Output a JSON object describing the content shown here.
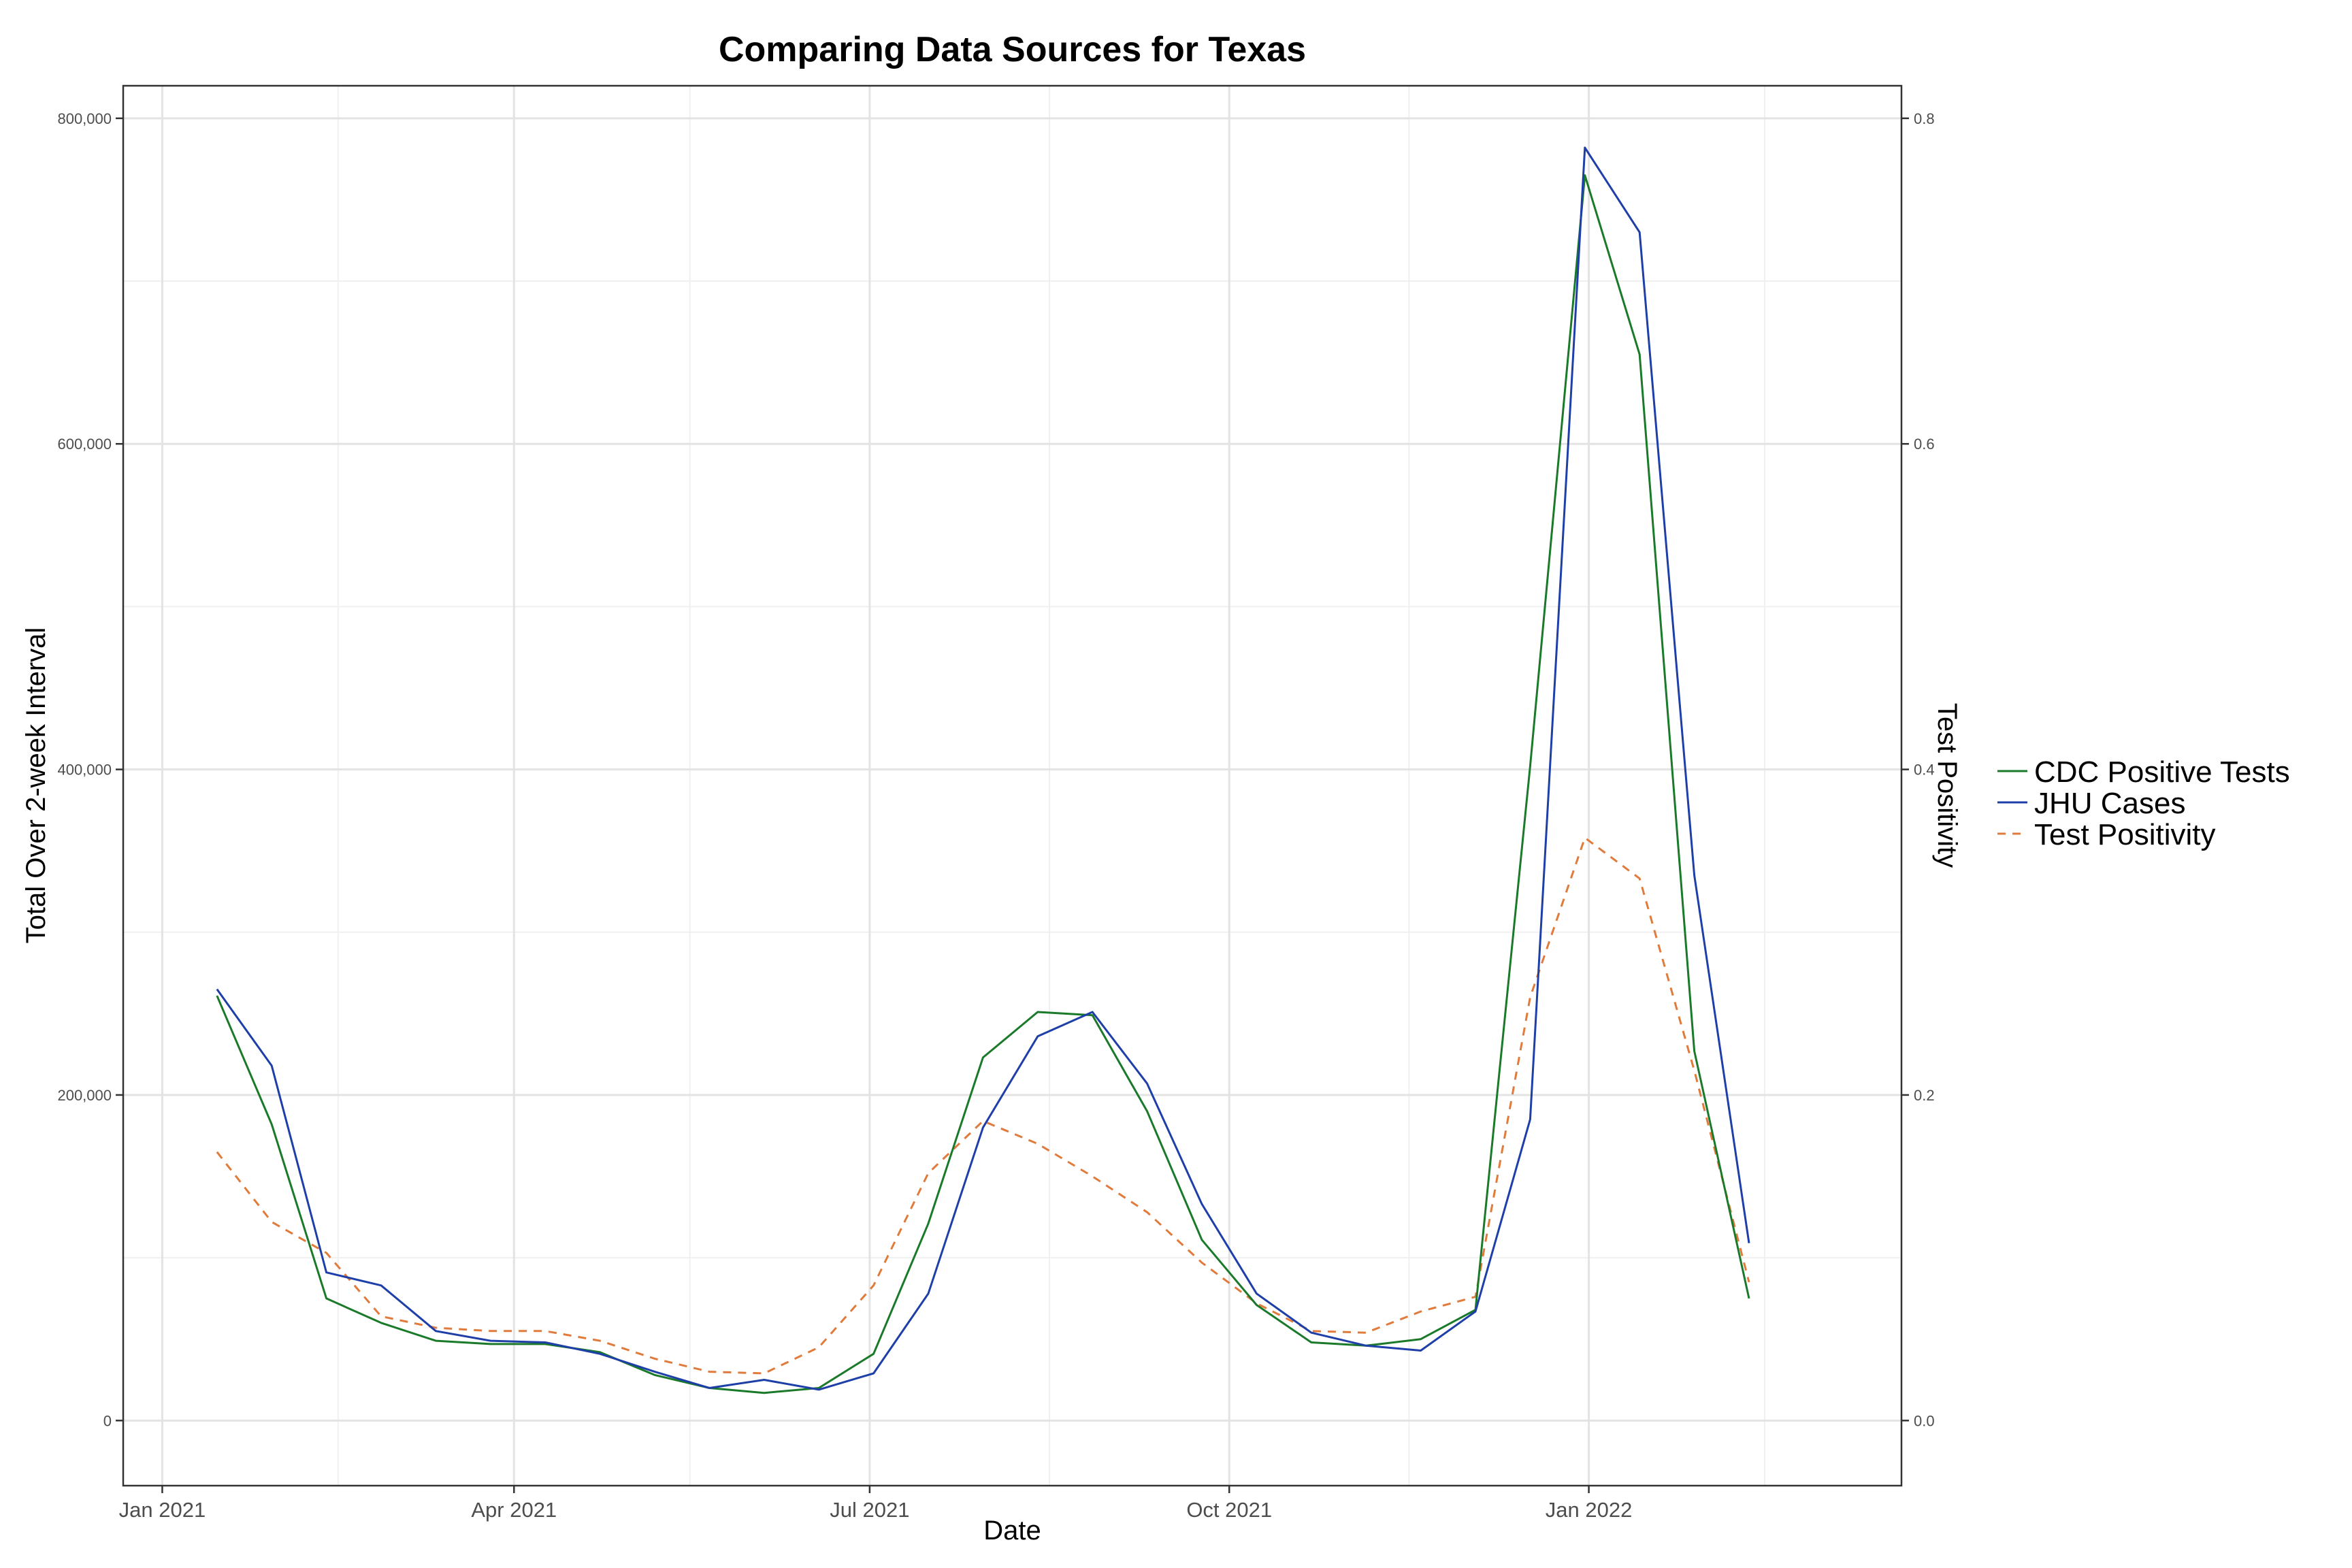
{
  "chart_data": {
    "type": "line",
    "title": "Comparing Data Sources for Texas",
    "xlabel": "Date",
    "ylabel": "Total Over 2-week Interval",
    "y2label": "Test Positivity",
    "x_range": [
      "2020-12-22",
      "2022-03-22"
    ],
    "ylim": [
      -40000,
      820000
    ],
    "y2lim": [
      -0.04,
      0.82
    ],
    "x_ticks": [
      {
        "date": "2021-01-01",
        "label": "Jan 2021"
      },
      {
        "date": "2021-04-01",
        "label": "Apr 2021"
      },
      {
        "date": "2021-07-01",
        "label": "Jul 2021"
      },
      {
        "date": "2021-10-01",
        "label": "Oct 2021"
      },
      {
        "date": "2022-01-01",
        "label": "Jan 2022"
      }
    ],
    "x_minor_ticks": [
      "2021-02-15",
      "2021-05-16",
      "2021-08-16",
      "2021-11-16",
      "2022-02-15"
    ],
    "y_ticks": [
      {
        "value": 0,
        "label": "0"
      },
      {
        "value": 200000,
        "label": "200,000"
      },
      {
        "value": 400000,
        "label": "400,000"
      },
      {
        "value": 600000,
        "label": "600,000"
      },
      {
        "value": 800000,
        "label": "800,000"
      }
    ],
    "y2_ticks": [
      {
        "value": 0.0,
        "label": "0.0"
      },
      {
        "value": 0.2,
        "label": "0.2"
      },
      {
        "value": 0.4,
        "label": "0.4"
      },
      {
        "value": 0.6,
        "label": "0.6"
      },
      {
        "value": 0.8,
        "label": "0.8"
      }
    ],
    "grid": true,
    "legend_position": "right",
    "x": [
      "2021-01-15",
      "2021-01-29",
      "2021-02-12",
      "2021-02-26",
      "2021-03-12",
      "2021-03-26",
      "2021-04-09",
      "2021-04-23",
      "2021-05-07",
      "2021-05-21",
      "2021-06-04",
      "2021-06-18",
      "2021-07-02",
      "2021-07-16",
      "2021-07-30",
      "2021-08-13",
      "2021-08-27",
      "2021-09-10",
      "2021-09-24",
      "2021-10-08",
      "2021-10-22",
      "2021-11-05",
      "2021-11-19",
      "2021-12-03",
      "2021-12-17",
      "2021-12-31",
      "2022-01-14",
      "2022-01-28",
      "2022-02-11"
    ],
    "series": [
      {
        "name": "CDC Positive Tests",
        "axis": "left",
        "color": "#1a7a2a",
        "dash": "solid",
        "values": [
          261000,
          182000,
          75000,
          60000,
          49000,
          47000,
          47000,
          42000,
          28000,
          20000,
          17000,
          20000,
          41000,
          121000,
          223000,
          251000,
          249000,
          190000,
          111000,
          71000,
          48000,
          46000,
          50000,
          68000,
          402000,
          765000,
          655000,
          227000,
          75000
        ]
      },
      {
        "name": "JHU Cases",
        "axis": "left",
        "color": "#1f3fa8",
        "dash": "solid",
        "values": [
          265000,
          218000,
          91000,
          83000,
          55000,
          49000,
          48000,
          41000,
          30000,
          20000,
          25000,
          19000,
          29000,
          78000,
          180000,
          236000,
          251000,
          207000,
          133000,
          78000,
          54000,
          46000,
          43000,
          67000,
          185000,
          782000,
          730000,
          335000,
          109000
        ]
      },
      {
        "name": "Test Positivity",
        "axis": "right",
        "color": "#e07b3c",
        "dash": "dashed",
        "values": [
          0.165,
          0.122,
          0.103,
          0.064,
          0.057,
          0.055,
          0.055,
          0.049,
          0.038,
          0.03,
          0.029,
          0.045,
          0.083,
          0.152,
          0.184,
          0.17,
          0.15,
          0.128,
          0.097,
          0.072,
          0.055,
          0.054,
          0.067,
          0.076,
          0.26,
          0.358,
          0.333,
          0.215,
          0.085
        ]
      }
    ]
  }
}
